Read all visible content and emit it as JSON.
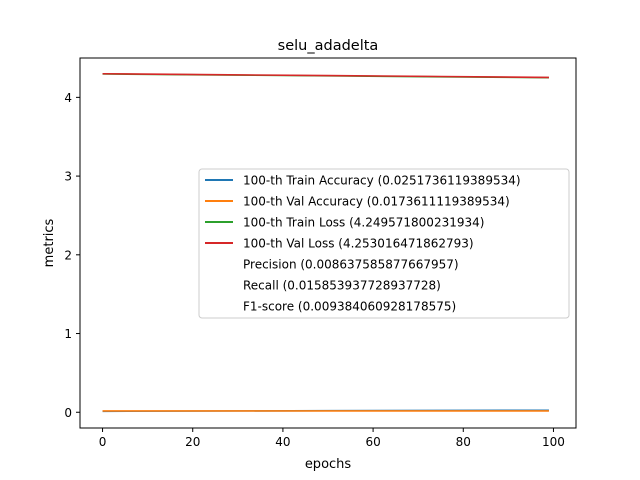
{
  "chart_data": {
    "type": "line",
    "title": "selu_adadelta",
    "xlabel": "epochs",
    "ylabel": "metrics",
    "xlim": [
      -5,
      105
    ],
    "ylim": [
      -0.2,
      4.5
    ],
    "xticks": [
      0,
      20,
      40,
      60,
      80,
      100
    ],
    "yticks": [
      0,
      1,
      2,
      3,
      4
    ],
    "grid": false,
    "legend_position": "center-right",
    "series": [
      {
        "name": "100-th Train Accuracy (0.0251736119389534)",
        "color": "#1f77b4",
        "x": [
          0,
          25,
          50,
          75,
          99
        ],
        "y": [
          0.012,
          0.016,
          0.02,
          0.023,
          0.025
        ]
      },
      {
        "name": "100-th Val Accuracy (0.0173611119389534)",
        "color": "#ff7f0e",
        "x": [
          0,
          25,
          50,
          75,
          99
        ],
        "y": [
          0.017,
          0.017,
          0.017,
          0.017,
          0.017
        ]
      },
      {
        "name": "100-th Train Loss (4.249571800231934)",
        "color": "#2ca02c",
        "x": [
          0,
          25,
          50,
          75,
          99
        ],
        "y": [
          4.297,
          4.285,
          4.273,
          4.261,
          4.25
        ]
      },
      {
        "name": "100-th Val Loss (4.253016471862793)",
        "color": "#d62728",
        "x": [
          0,
          25,
          50,
          75,
          99
        ],
        "y": [
          4.3,
          4.288,
          4.277,
          4.265,
          4.253
        ]
      }
    ],
    "legend_extra": [
      "Precision (0.008637585877667957)",
      "Recall (0.015853937728937728)",
      "F1-score (0.009384060928178575)"
    ]
  }
}
